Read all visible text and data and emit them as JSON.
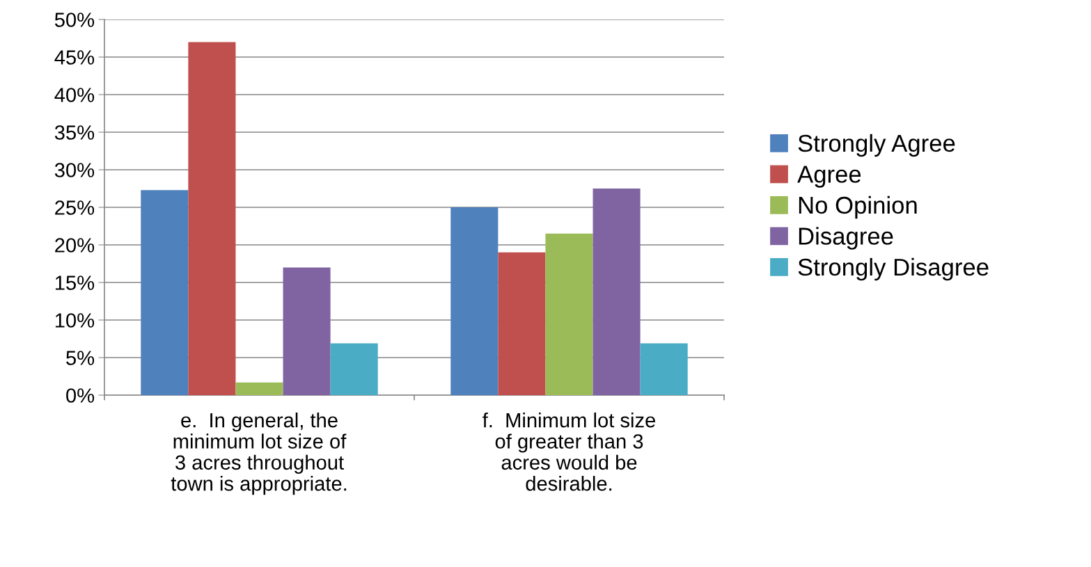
{
  "chart_data": {
    "type": "bar",
    "categories": [
      "e.  In general, the\nminimum lot size of\n3 acres throughout\ntown is appropriate.",
      "f.  Minimum lot size\nof greater than 3\nacres would be\ndesirable."
    ],
    "series": [
      {
        "name": "Strongly Agree",
        "color": "#4f81bd",
        "values": [
          27.3,
          25.0
        ]
      },
      {
        "name": "Agree",
        "color": "#c0504d",
        "values": [
          47.0,
          19.0
        ]
      },
      {
        "name": "No Opinion",
        "color": "#9bbb59",
        "values": [
          1.7,
          21.5
        ]
      },
      {
        "name": "Disagree",
        "color": "#8064a2",
        "values": [
          17.0,
          27.5
        ]
      },
      {
        "name": "Strongly Disagree",
        "color": "#4bacc6",
        "values": [
          6.9,
          6.9
        ]
      }
    ],
    "ylim": [
      0,
      50
    ],
    "yticks": [
      {
        "value": 0,
        "label": "0%"
      },
      {
        "value": 5,
        "label": "5%"
      },
      {
        "value": 10,
        "label": "10%"
      },
      {
        "value": 15,
        "label": "15%"
      },
      {
        "value": 20,
        "label": "20%"
      },
      {
        "value": 25,
        "label": "25%"
      },
      {
        "value": 30,
        "label": "30%"
      },
      {
        "value": 35,
        "label": "35%"
      },
      {
        "value": 40,
        "label": "40%"
      },
      {
        "value": 45,
        "label": "45%"
      },
      {
        "value": 50,
        "label": "50%"
      }
    ],
    "grid": "y",
    "legend": "right"
  }
}
